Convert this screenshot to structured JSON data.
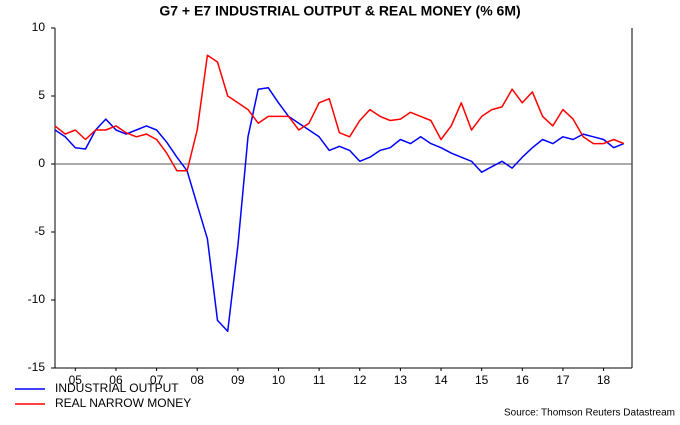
{
  "chart_data": {
    "type": "line",
    "title": "G7 + E7 INDUSTRIAL OUTPUT & REAL MONEY (% 6M)",
    "source": "Source: Thomson Reuters Datastream",
    "x": [
      2005.0,
      2005.25,
      2005.5,
      2005.75,
      2006.0,
      2006.25,
      2006.5,
      2006.75,
      2007.0,
      2007.25,
      2007.5,
      2007.75,
      2008.0,
      2008.25,
      2008.5,
      2008.75,
      2009.0,
      2009.25,
      2009.5,
      2009.75,
      2010.0,
      2010.25,
      2010.5,
      2010.75,
      2011.0,
      2011.25,
      2011.5,
      2011.75,
      2012.0,
      2012.25,
      2012.5,
      2012.75,
      2013.0,
      2013.25,
      2013.5,
      2013.75,
      2014.0,
      2014.25,
      2014.5,
      2014.75,
      2015.0,
      2015.25,
      2015.5,
      2015.75,
      2016.0,
      2016.25,
      2016.5,
      2016.75,
      2017.0,
      2017.25,
      2017.5,
      2017.75,
      2018.0,
      2018.25,
      2018.5,
      2018.75,
      2019.0
    ],
    "series": [
      {
        "name": "INDUSTRIAL OUTPUT",
        "color": "#0000ff",
        "values": [
          2.5,
          2.0,
          1.2,
          1.1,
          2.5,
          3.3,
          2.5,
          2.2,
          2.5,
          2.8,
          2.5,
          1.6,
          0.5,
          -0.5,
          -3,
          -5.5,
          -11.5,
          -12.3,
          -6,
          2,
          5.5,
          5.6,
          4.5,
          3.5,
          3.0,
          2.5,
          2.0,
          1.0,
          1.3,
          1.0,
          0.2,
          0.5,
          1.0,
          1.2,
          1.8,
          1.5,
          2.0,
          1.5,
          1.2,
          0.8,
          0.5,
          0.2,
          -0.6,
          -0.2,
          0.2,
          -0.3,
          0.5,
          1.2,
          1.8,
          1.5,
          2.0,
          1.8,
          2.2,
          2.0,
          1.8,
          1.2,
          1.5
        ]
      },
      {
        "name": "REAL NARROW MONEY",
        "color": "#ff0000",
        "values": [
          2.8,
          2.2,
          2.5,
          1.8,
          2.5,
          2.5,
          2.8,
          2.3,
          2.0,
          2.2,
          1.8,
          0.8,
          -0.5,
          -0.5,
          2.5,
          8.0,
          7.5,
          5.0,
          4.5,
          4.0,
          3.0,
          3.5,
          3.5,
          3.5,
          2.5,
          3.0,
          4.5,
          4.8,
          2.3,
          2.0,
          3.2,
          4.0,
          3.5,
          3.2,
          3.3,
          3.8,
          3.5,
          3.2,
          1.8,
          2.8,
          4.5,
          2.5,
          3.5,
          4.0,
          4.2,
          5.5,
          4.5,
          5.3,
          3.5,
          2.8,
          4.0,
          3.3,
          2.0,
          1.5,
          1.5,
          1.8,
          1.5
        ]
      }
    ],
    "xlim": [
      2005.0,
      2019.2
    ],
    "xticks": [
      {
        "value": 2005.5,
        "label": "05"
      },
      {
        "value": 2006.5,
        "label": "06"
      },
      {
        "value": 2007.5,
        "label": "07"
      },
      {
        "value": 2008.5,
        "label": "08"
      },
      {
        "value": 2009.5,
        "label": "09"
      },
      {
        "value": 2010.5,
        "label": "10"
      },
      {
        "value": 2011.5,
        "label": "11"
      },
      {
        "value": 2012.5,
        "label": "12"
      },
      {
        "value": 2013.5,
        "label": "13"
      },
      {
        "value": 2014.5,
        "label": "14"
      },
      {
        "value": 2015.5,
        "label": "15"
      },
      {
        "value": 2016.5,
        "label": "16"
      },
      {
        "value": 2017.5,
        "label": "17"
      },
      {
        "value": 2018.5,
        "label": "18"
      }
    ],
    "ylim": [
      -15,
      10
    ],
    "yticks": [
      10,
      5,
      0,
      -5,
      -10,
      -15
    ],
    "legend": "bottom-left"
  }
}
